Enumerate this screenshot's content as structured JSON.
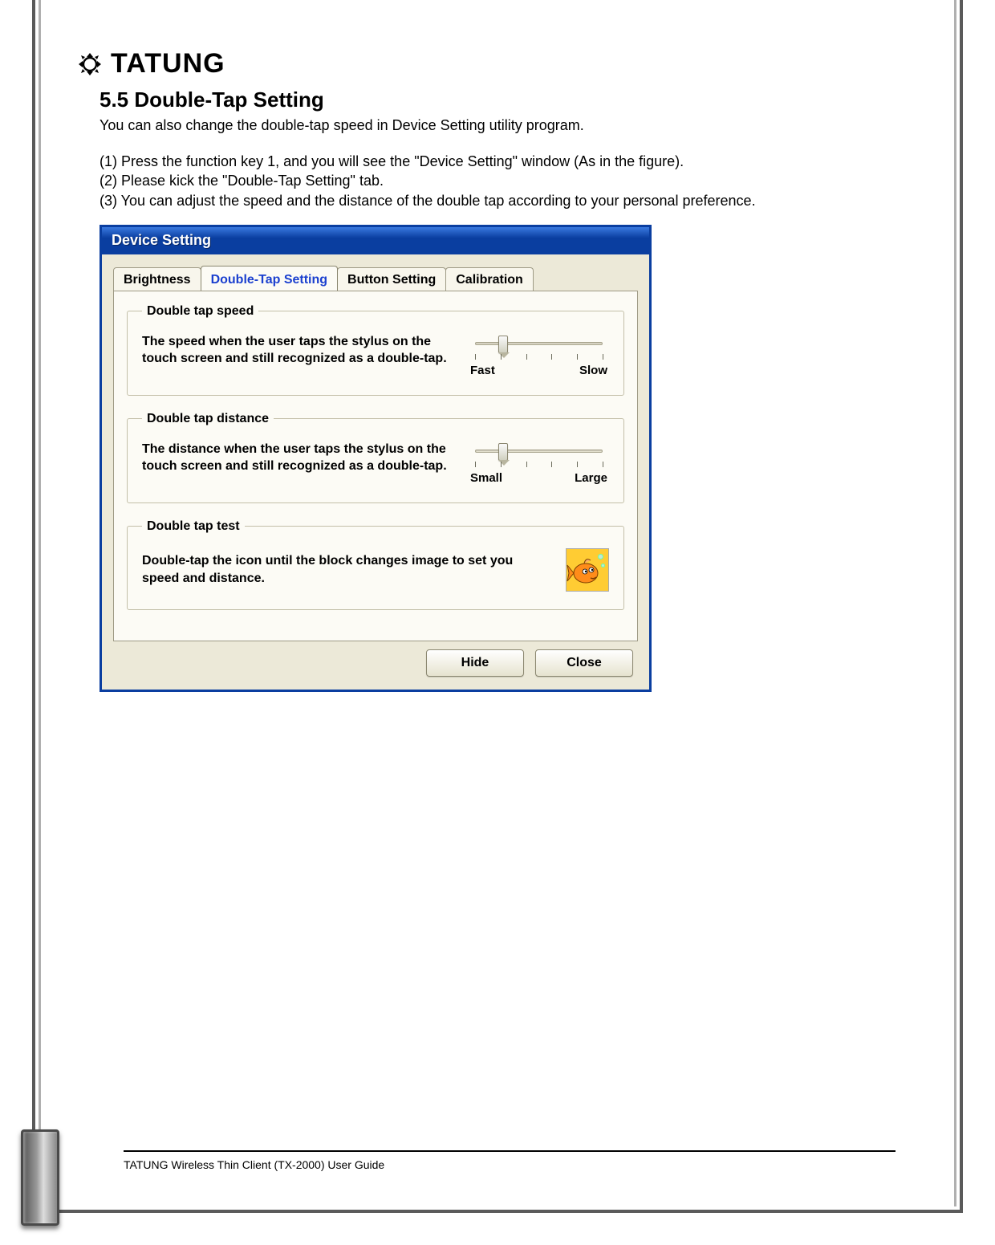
{
  "brand": {
    "name": "TATUNG"
  },
  "section": {
    "heading": "5.5 Double-Tap Setting",
    "intro": "You can also change the double-tap speed in Device Setting utility program.",
    "steps": [
      "(1) Press the function key 1, and you will see the \"Device Setting\" window (As in the figure).",
      "(2) Please kick the \"Double-Tap Setting\" tab.",
      "(3) You can adjust the speed and the distance of the double tap according to your personal preference."
    ]
  },
  "dialog": {
    "title": "Device Setting",
    "tabs": {
      "brightness": "Brightness",
      "double_tap": "Double-Tap Setting",
      "button_setting": "Button Setting",
      "calibration": "Calibration"
    },
    "groups": {
      "speed": {
        "legend": "Double tap speed",
        "desc": "The speed when the user taps the stylus on the touch screen and still recognized as a double-tap.",
        "left_label": "Fast",
        "right_label": "Slow",
        "value_pct": 18,
        "tick_count": 6
      },
      "distance": {
        "legend": "Double tap distance",
        "desc": "The distance when the user taps the stylus on the touch screen and still recognized as a double-tap.",
        "left_label": "Small",
        "right_label": "Large",
        "value_pct": 18,
        "tick_count": 6
      },
      "test": {
        "legend": "Double tap test",
        "desc": "Double-tap the icon until the block changes image to set you speed and distance."
      }
    },
    "buttons": {
      "hide": "Hide",
      "close": "Close"
    },
    "colors": {
      "titlebar_start": "#3a7ae0",
      "titlebar_end": "#0a3ea0",
      "dialog_border": "#0a3ea0",
      "face": "#ece9d8",
      "active_tab_text": "#1a3fcf",
      "test_icon_bg": "#ffcc33"
    }
  },
  "footer": {
    "text": "TATUNG Wireless Thin Client (TX-2000) User Guide"
  }
}
